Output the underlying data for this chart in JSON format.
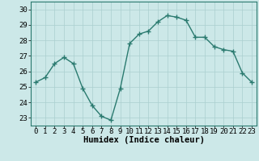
{
  "x": [
    0,
    1,
    2,
    3,
    4,
    5,
    6,
    7,
    8,
    9,
    10,
    11,
    12,
    13,
    14,
    15,
    16,
    17,
    18,
    19,
    20,
    21,
    22,
    23
  ],
  "y": [
    25.3,
    25.6,
    26.5,
    26.9,
    26.5,
    24.9,
    23.8,
    23.1,
    22.85,
    24.9,
    27.8,
    28.4,
    28.6,
    29.2,
    29.6,
    29.5,
    29.3,
    28.2,
    28.2,
    27.6,
    27.4,
    27.3,
    25.9,
    25.3
  ],
  "line_color": "#2a7a6f",
  "marker": "+",
  "marker_size": 4,
  "bg_color": "#cce8e8",
  "grid_color": "#aacfcf",
  "xlabel": "Humidex (Indice chaleur)",
  "ylim": [
    22.5,
    30.5
  ],
  "xlim": [
    -0.5,
    23.5
  ],
  "yticks": [
    23,
    24,
    25,
    26,
    27,
    28,
    29,
    30
  ],
  "xticks": [
    0,
    1,
    2,
    3,
    4,
    5,
    6,
    7,
    8,
    9,
    10,
    11,
    12,
    13,
    14,
    15,
    16,
    17,
    18,
    19,
    20,
    21,
    22,
    23
  ],
  "tick_fontsize": 6.5,
  "xlabel_fontsize": 7.5,
  "line_width": 1.0
}
